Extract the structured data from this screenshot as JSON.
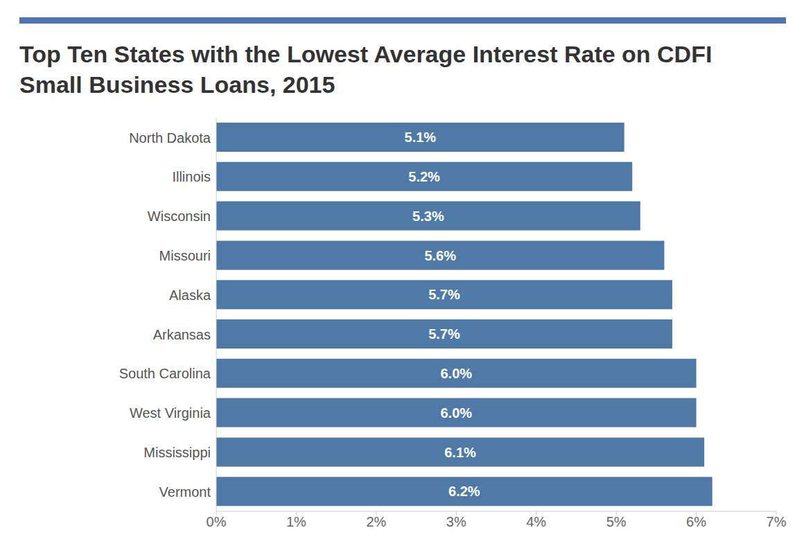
{
  "chart_data": {
    "type": "bar",
    "title": "Top Ten States with the Lowest Average Interest Rate on CDFI Small Business Loans, 2015",
    "orientation": "horizontal",
    "categories": [
      "North Dakota",
      "Illinois",
      "Wisconsin",
      "Missouri",
      "Alaska",
      "Arkansas",
      "South Carolina",
      "West Virginia",
      "Mississippi",
      "Vermont"
    ],
    "values": [
      5.1,
      5.2,
      5.3,
      5.6,
      5.7,
      5.7,
      6.0,
      6.0,
      6.1,
      6.2
    ],
    "value_labels": [
      "5.1%",
      "5.2%",
      "5.3%",
      "5.6%",
      "5.7%",
      "5.7%",
      "6.0%",
      "6.0%",
      "6.1%",
      "6.2%"
    ],
    "color": "#4f7aa8",
    "xlim": [
      0,
      7
    ],
    "xticks": [
      {
        "value": 0,
        "label": "0%"
      },
      {
        "value": 1,
        "label": "1%"
      },
      {
        "value": 2,
        "label": "2%"
      },
      {
        "value": 3,
        "label": "3%"
      },
      {
        "value": 4,
        "label": "4%"
      },
      {
        "value": 5,
        "label": "5%"
      },
      {
        "value": 6,
        "label": "6%"
      },
      {
        "value": 7,
        "label": "7%"
      }
    ],
    "grid": false,
    "data_labels": true
  }
}
